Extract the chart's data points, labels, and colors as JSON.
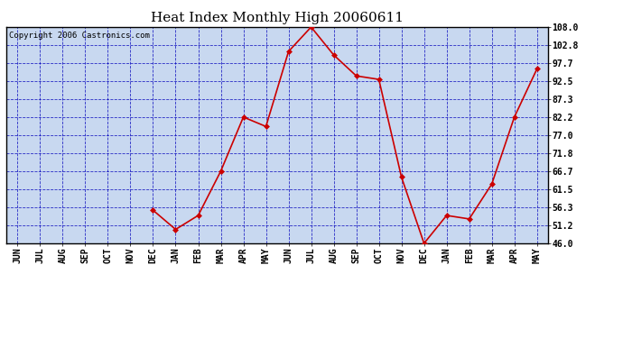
{
  "title": "Heat Index Monthly High 20060611",
  "copyright": "Copyright 2006 Castronics.com",
  "categories": [
    "JUN",
    "JUL",
    "AUG",
    "SEP",
    "OCT",
    "NOV",
    "DEC",
    "JAN",
    "FEB",
    "MAR",
    "APR",
    "MAY",
    "JUN",
    "JUL",
    "AUG",
    "SEP",
    "OCT",
    "NOV",
    "DEC",
    "JAN",
    "FEB",
    "MAR",
    "APR",
    "MAY"
  ],
  "values": [
    null,
    null,
    null,
    null,
    null,
    null,
    55.5,
    50.0,
    54.0,
    66.7,
    82.2,
    79.5,
    101.0,
    108.0,
    100.0,
    94.0,
    93.0,
    65.0,
    46.0,
    54.0,
    53.0,
    63.0,
    82.2,
    96.0
  ],
  "ymin": 46.0,
  "ymax": 108.0,
  "yticks": [
    46.0,
    51.2,
    56.3,
    61.5,
    66.7,
    71.8,
    77.0,
    82.2,
    87.3,
    92.5,
    97.7,
    102.8,
    108.0
  ],
  "line_color": "#cc0000",
  "marker_color": "#cc0000",
  "bg_color": "#c8d8f0",
  "fig_bg_color": "#ffffff",
  "grid_color": "#0000bb",
  "title_fontsize": 11,
  "copyright_fontsize": 6.5,
  "tick_fontsize": 7
}
